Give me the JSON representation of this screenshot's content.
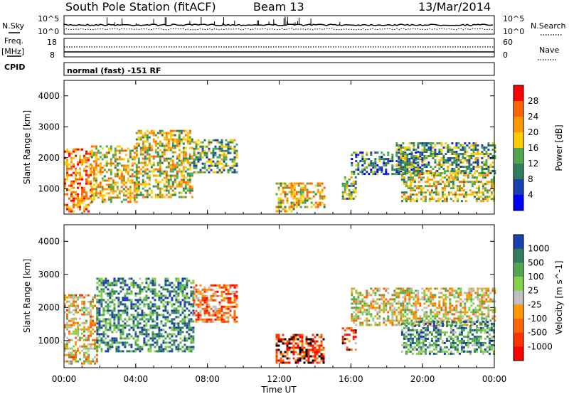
{
  "header": {
    "station": "South Pole Station (fitACF)",
    "beam": "Beam 13",
    "date": "13/Mar/2014"
  },
  "panels": {
    "nsky_label": "N.Sky",
    "nsearch_label": "N.Search",
    "log_top": "10^5",
    "log_bottom": "10^0",
    "freq_label_1": "Freq.",
    "freq_label_2": "[MHz]",
    "freq_ticks": [
      "18",
      "8"
    ],
    "nave_label": "Nave",
    "nave_ticks": [
      "60",
      "0"
    ],
    "cpid_label": "CPID",
    "cpid_text": "normal (fast) -151 RF"
  },
  "chart_data": [
    {
      "type": "heatmap",
      "title": "",
      "quantity": "Power",
      "colorbar_label": "Power [dB]",
      "colorbar_ticks": [
        "28",
        "24",
        "20",
        "16",
        "12",
        "8",
        "4"
      ],
      "colorbar_colors": [
        "#ff0000",
        "#ff6600",
        "#ff9900",
        "#ffcc00",
        "#4fa84f",
        "#2e7d5b",
        "#1a3fb0",
        "#0000ff"
      ],
      "xlabel": "Time UT",
      "ylabel": "Slant Range [km]",
      "x_ticks": [
        "00:00",
        "04:00",
        "08:00",
        "12:00",
        "16:00",
        "20:00",
        "00:00"
      ],
      "y_ticks": [
        "1000",
        "2000",
        "3000",
        "4000"
      ],
      "ylim": [
        180,
        4500
      ],
      "xlim_hours": [
        0,
        24
      ],
      "echo_regions": [
        {
          "t0": 0.0,
          "t1": 1.5,
          "r0": 300,
          "r1": 2300,
          "level": 0.75
        },
        {
          "t0": 1.5,
          "t1": 4.0,
          "r0": 600,
          "r1": 2400,
          "level": 0.6
        },
        {
          "t0": 4.0,
          "t1": 7.2,
          "r0": 700,
          "r1": 2900,
          "level": 0.55
        },
        {
          "t0": 7.2,
          "t1": 9.6,
          "r0": 1500,
          "r1": 2600,
          "level": 0.4
        },
        {
          "t0": 11.8,
          "t1": 12.8,
          "r0": 300,
          "r1": 1200,
          "level": 0.55
        },
        {
          "t0": 12.8,
          "t1": 14.5,
          "r0": 400,
          "r1": 1200,
          "level": 0.6
        },
        {
          "t0": 15.5,
          "t1": 16.3,
          "r0": 700,
          "r1": 1400,
          "level": 0.45
        },
        {
          "t0": 16.0,
          "t1": 20.0,
          "r0": 1500,
          "r1": 2200,
          "level": 0.3
        },
        {
          "t0": 18.8,
          "t1": 24.0,
          "r0": 600,
          "r1": 1600,
          "level": 0.55
        },
        {
          "t0": 18.5,
          "t1": 24.0,
          "r0": 1500,
          "r1": 2500,
          "level": 0.4
        }
      ]
    },
    {
      "type": "heatmap",
      "title": "",
      "quantity": "Velocity",
      "colorbar_label": "Velocity [m s^-1]",
      "colorbar_ticks": [
        "1000",
        "500",
        "100",
        "25",
        "-25",
        "-100",
        "-500",
        "-1000"
      ],
      "colorbar_colors": [
        "#1a3fb0",
        "#2e7d5b",
        "#4fa84f",
        "#86d14a",
        "#c0c0c0",
        "#ff9900",
        "#ff6600",
        "#ff3300",
        "#ff0000"
      ],
      "xlabel": "Time UT",
      "ylabel": "Slant Range [km]",
      "x_ticks": [
        "00:00",
        "04:00",
        "08:00",
        "12:00",
        "16:00",
        "20:00",
        "00:00"
      ],
      "y_ticks": [
        "1000",
        "2000",
        "3000",
        "4000"
      ],
      "ylim": [
        180,
        4500
      ],
      "xlim_hours": [
        0,
        24
      ],
      "echo_regions": [
        {
          "t0": 0.0,
          "t1": 1.8,
          "r0": 300,
          "r1": 2400,
          "level": 0.45
        },
        {
          "t0": 1.8,
          "t1": 7.2,
          "r0": 700,
          "r1": 2900,
          "level": 0.8
        },
        {
          "t0": 7.2,
          "t1": 9.6,
          "r0": 1600,
          "r1": 2700,
          "level": 0.3
        },
        {
          "t0": 11.8,
          "t1": 14.5,
          "r0": 300,
          "r1": 1200,
          "level": 0.15
        },
        {
          "t0": 15.5,
          "t1": 16.3,
          "r0": 700,
          "r1": 1400,
          "level": 0.2
        },
        {
          "t0": 16.0,
          "t1": 24.0,
          "r0": 1500,
          "r1": 2600,
          "level": 0.5
        },
        {
          "t0": 18.8,
          "t1": 24.0,
          "r0": 600,
          "r1": 1600,
          "level": 0.75
        }
      ]
    }
  ]
}
